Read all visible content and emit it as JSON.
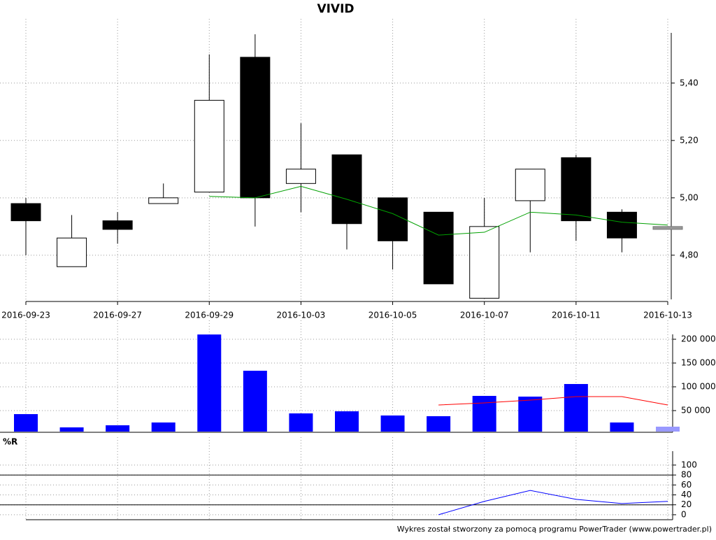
{
  "chart_data": [
    {
      "type": "candlestick",
      "title": "VIVID",
      "categories": [
        "2016-09-23",
        null,
        "2016-09-27",
        null,
        "2016-09-29",
        null,
        "2016-10-03",
        null,
        "2016-10-05",
        null,
        "2016-10-07",
        null,
        "2016-10-11",
        null,
        "2016-10-13"
      ],
      "open": [
        4.98,
        4.76,
        4.92,
        4.98,
        5.02,
        5.49,
        5.05,
        5.15,
        5.0,
        4.95,
        4.65,
        4.99,
        5.14,
        4.95,
        4.9
      ],
      "high": [
        5.0,
        4.94,
        4.95,
        5.05,
        5.5,
        5.57,
        5.26,
        5.15,
        5.0,
        4.95,
        5.0,
        5.1,
        5.15,
        4.96,
        4.9
      ],
      "low": [
        4.8,
        4.76,
        4.84,
        4.98,
        5.02,
        4.9,
        4.95,
        4.82,
        4.75,
        4.7,
        4.65,
        4.81,
        4.85,
        4.81,
        4.89
      ],
      "close": [
        4.92,
        4.86,
        4.89,
        5.0,
        5.34,
        5.0,
        5.1,
        4.91,
        4.85,
        4.7,
        4.9,
        5.1,
        4.92,
        4.86,
        4.89
      ],
      "up_color": "#ffffff",
      "down_color": "#000000",
      "last_color": "#999999",
      "lines": [
        {
          "color": "#00a000",
          "values": [
            null,
            null,
            null,
            null,
            5.005,
            5.0,
            5.04,
            4.995,
            4.945,
            4.87,
            4.88,
            4.95,
            4.94,
            4.915,
            4.905
          ]
        }
      ],
      "ylim": [
        4.646,
        5.575
      ],
      "yticks": [
        {
          "value": 4.8,
          "label": "4,80"
        },
        {
          "value": 5.0,
          "label": "5,00"
        },
        {
          "value": 5.2,
          "label": "5,20"
        },
        {
          "value": 5.4,
          "label": "5,40"
        }
      ],
      "grid": true
    },
    {
      "type": "bar",
      "values": [
        42600,
        14700,
        19100,
        25000,
        210000,
        133800,
        44100,
        48500,
        39700,
        38200,
        80900,
        79400,
        105900,
        25000,
        16200
      ],
      "color": "#0000ff",
      "last_color": "#9999ff",
      "lines": [
        {
          "color": "#ff0000",
          "values": [
            null,
            null,
            null,
            null,
            null,
            null,
            null,
            null,
            null,
            61800,
            66200,
            72000,
            79400,
            79400,
            61800
          ]
        }
      ],
      "ylim": [
        4400,
        210300
      ],
      "yticks": [
        {
          "value": 50000,
          "label": "50 000"
        },
        {
          "value": 100000,
          "label": "100 000"
        },
        {
          "value": 150000,
          "label": "150 000"
        },
        {
          "value": 200000,
          "label": "200 000"
        }
      ],
      "grid": true
    },
    {
      "type": "line",
      "title": "%R",
      "series": [
        {
          "color": "#0000ff",
          "values": [
            null,
            null,
            null,
            null,
            null,
            null,
            null,
            null,
            null,
            0,
            27,
            49,
            31,
            22.5,
            27
          ]
        }
      ],
      "levels": [
        20,
        80
      ],
      "ylim": [
        -10,
        128
      ],
      "yticks": [
        0,
        20,
        40,
        60,
        80,
        100
      ],
      "grid": true
    }
  ],
  "footer": "Wykres został stworzony za pomocą programu PowerTrader (www.powertrader.pl)"
}
